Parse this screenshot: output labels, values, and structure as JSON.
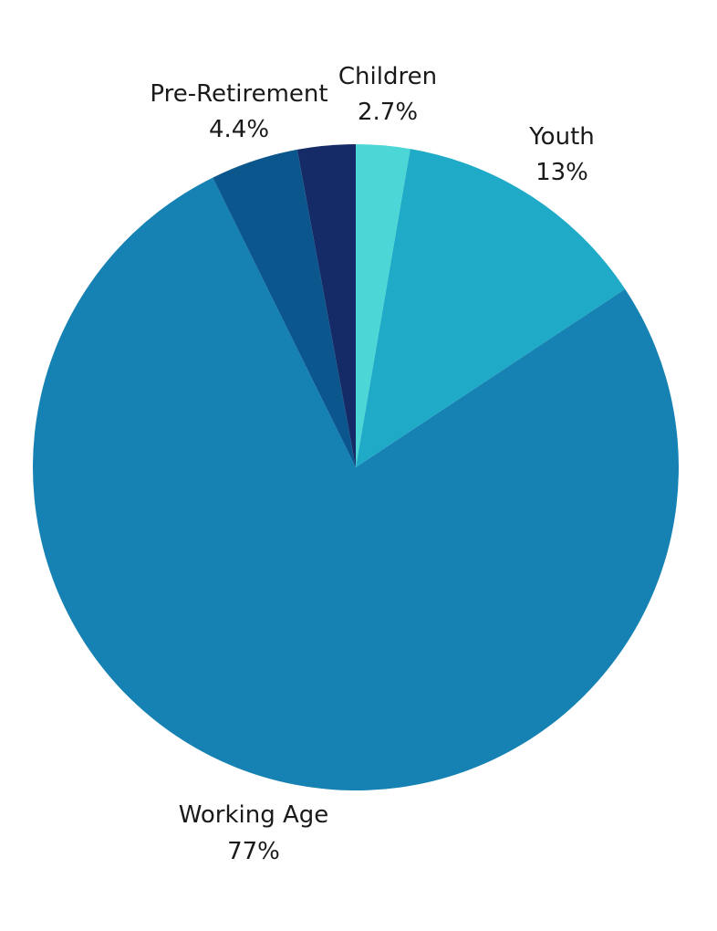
{
  "chart_data": {
    "type": "pie",
    "title": "",
    "legend": "none",
    "slices": [
      {
        "label": "Children",
        "value_label": "2.7%",
        "value": 2.7,
        "color": "#4dd6d6"
      },
      {
        "label": "Youth",
        "value_label": "13%",
        "value": 13,
        "color": "#1fabc8"
      },
      {
        "label": "Working Age",
        "value_label": "77%",
        "value": 77,
        "color": "#1681b3"
      },
      {
        "label": "Pre-Retirement",
        "value_label": "4.4%",
        "value": 4.4,
        "color": "#0b568d"
      },
      {
        "label": "",
        "value_label": "",
        "value": 2.9,
        "color": "#152b67"
      }
    ]
  }
}
